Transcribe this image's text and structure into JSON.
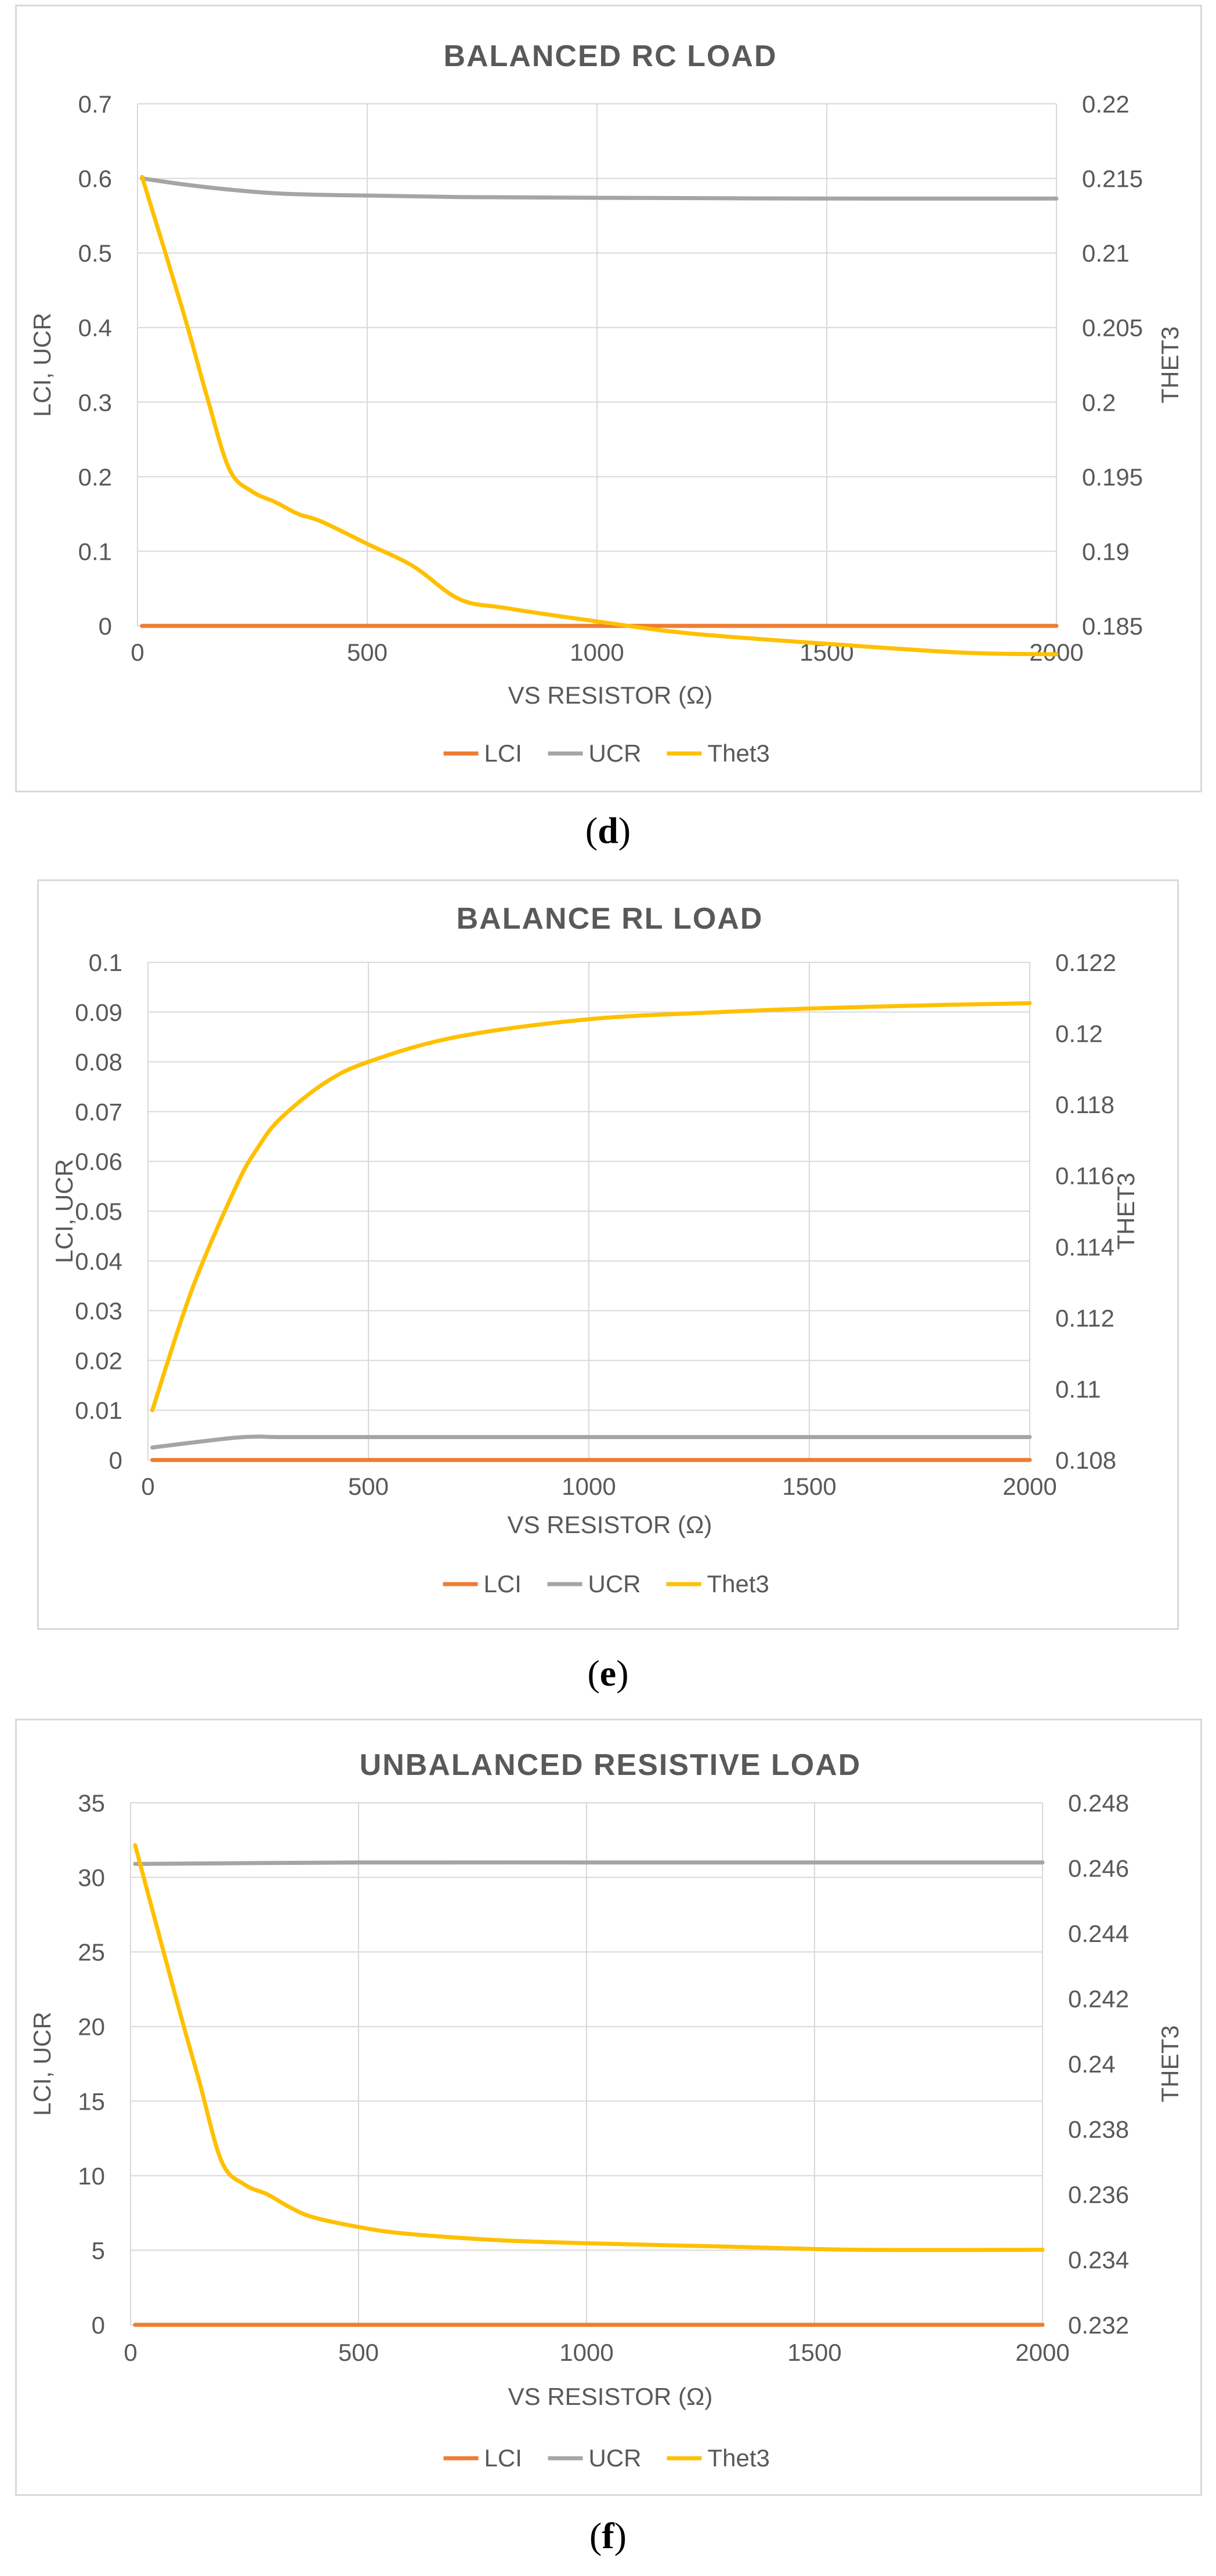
{
  "colors": {
    "LCI": "#ed7d31",
    "UCR": "#a5a5a5",
    "Thet3": "#ffc000",
    "grid": "#d9d9d9",
    "text": "#595959"
  },
  "captions": {
    "d": "d",
    "e": "e",
    "f": "f"
  },
  "chart_data": [
    {
      "type": "line",
      "title": "BALANCED RC LOAD",
      "xlabel": "VS RESISTOR (Ω)",
      "ylabel": "LCI, UCR",
      "y2label": "THET3",
      "xlim": [
        0,
        2000
      ],
      "xticks": [
        "0",
        "500",
        "1000",
        "1500",
        "2000"
      ],
      "ylim": [
        0,
        0.7
      ],
      "yticks": [
        "0",
        "0.1",
        "0.2",
        "0.3",
        "0.4",
        "0.5",
        "0.6",
        "0.7"
      ],
      "y2lim": [
        0.185,
        0.22
      ],
      "y2ticks": [
        "0.185",
        "0.19",
        "0.195",
        "0.2",
        "0.205",
        "0.21",
        "0.215",
        "0.22"
      ],
      "grid": true,
      "legend": "bottom",
      "series": [
        {
          "name": "LCI",
          "axis": "left",
          "x": [
            10,
            2000
          ],
          "y": [
            0,
            0
          ]
        },
        {
          "name": "UCR",
          "axis": "left",
          "x": [
            10,
            100,
            200,
            300,
            400,
            500,
            700,
            1000,
            1500,
            2000
          ],
          "y": [
            0.6,
            0.592,
            0.585,
            0.58,
            0.578,
            0.577,
            0.575,
            0.574,
            0.573,
            0.573
          ]
        },
        {
          "name": "Thet3",
          "axis": "right",
          "x": [
            10,
            100,
            150,
            200,
            250,
            300,
            350,
            400,
            500,
            600,
            700,
            800,
            1000,
            1200,
            1500,
            1800,
            2000
          ],
          "y": [
            0.2151,
            0.206,
            0.2005,
            0.1955,
            0.194,
            0.1933,
            0.1925,
            0.192,
            0.1905,
            0.189,
            0.1868,
            0.1862,
            0.1853,
            0.1845,
            0.1838,
            0.1832,
            0.1831
          ]
        }
      ]
    },
    {
      "type": "line",
      "title": "BALANCE RL LOAD",
      "xlabel": "VS RESISTOR (Ω)",
      "ylabel": "LCI, UCR",
      "y2label": "THET3",
      "xlim": [
        0,
        2000
      ],
      "xticks": [
        "0",
        "500",
        "1000",
        "1500",
        "2000"
      ],
      "ylim": [
        0,
        0.1
      ],
      "yticks": [
        "0",
        "0.01",
        "0.02",
        "0.03",
        "0.04",
        "0.05",
        "0.06",
        "0.07",
        "0.08",
        "0.09",
        "0.1"
      ],
      "y2lim": [
        0.108,
        0.122
      ],
      "y2ticks": [
        "0.108",
        "0.11",
        "0.112",
        "0.114",
        "0.116",
        "0.118",
        "0.12",
        "0.122"
      ],
      "grid": true,
      "legend": "bottom",
      "series": [
        {
          "name": "LCI",
          "axis": "left",
          "x": [
            10,
            2000
          ],
          "y": [
            0,
            0
          ]
        },
        {
          "name": "UCR",
          "axis": "left",
          "x": [
            10,
            100,
            200,
            250,
            300,
            500,
            1000,
            1500,
            2000
          ],
          "y": [
            0.0025,
            0.0035,
            0.0045,
            0.0047,
            0.0046,
            0.0046,
            0.0046,
            0.0046,
            0.0046
          ]
        },
        {
          "name": "Thet3",
          "axis": "right",
          "x": [
            10,
            100,
            200,
            250,
            300,
            400,
            500,
            700,
            1000,
            1300,
            1500,
            1800,
            2000
          ],
          "y": [
            0.1094,
            0.1128,
            0.1157,
            0.1168,
            0.1176,
            0.1186,
            0.1192,
            0.1199,
            0.1204,
            0.1206,
            0.1207,
            0.1208,
            0.12085
          ]
        }
      ]
    },
    {
      "type": "line",
      "title": "UNBALANCED RESISTIVE LOAD",
      "xlabel": "VS RESISTOR (Ω)",
      "ylabel": "LCI, UCR",
      "y2label": "THET3",
      "xlim": [
        0,
        2000
      ],
      "xticks": [
        "0",
        "500",
        "1000",
        "1500",
        "2000"
      ],
      "ylim": [
        0,
        35
      ],
      "yticks": [
        "0",
        "5",
        "10",
        "15",
        "20",
        "25",
        "30",
        "35"
      ],
      "y2lim": [
        0.232,
        0.248
      ],
      "y2ticks": [
        "0.232",
        "0.234",
        "0.236",
        "0.238",
        "0.24",
        "0.242",
        "0.244",
        "0.246",
        "0.248"
      ],
      "grid": true,
      "legend": "bottom",
      "series": [
        {
          "name": "LCI",
          "axis": "left",
          "x": [
            10,
            2000
          ],
          "y": [
            0,
            0
          ]
        },
        {
          "name": "UCR",
          "axis": "left",
          "x": [
            10,
            500,
            1000,
            1500,
            2000
          ],
          "y": [
            30.9,
            31.0,
            31.0,
            31.0,
            31.0
          ]
        },
        {
          "name": "Thet3",
          "axis": "right",
          "x": [
            10,
            100,
            150,
            200,
            250,
            300,
            350,
            400,
            500,
            600,
            800,
            1000,
            1300,
            1600,
            2000
          ],
          "y": [
            0.2467,
            0.242,
            0.2395,
            0.237,
            0.2363,
            0.236,
            0.2356,
            0.2353,
            0.235,
            0.2348,
            0.2346,
            0.2345,
            0.2344,
            0.2343,
            0.2343
          ]
        }
      ]
    }
  ]
}
